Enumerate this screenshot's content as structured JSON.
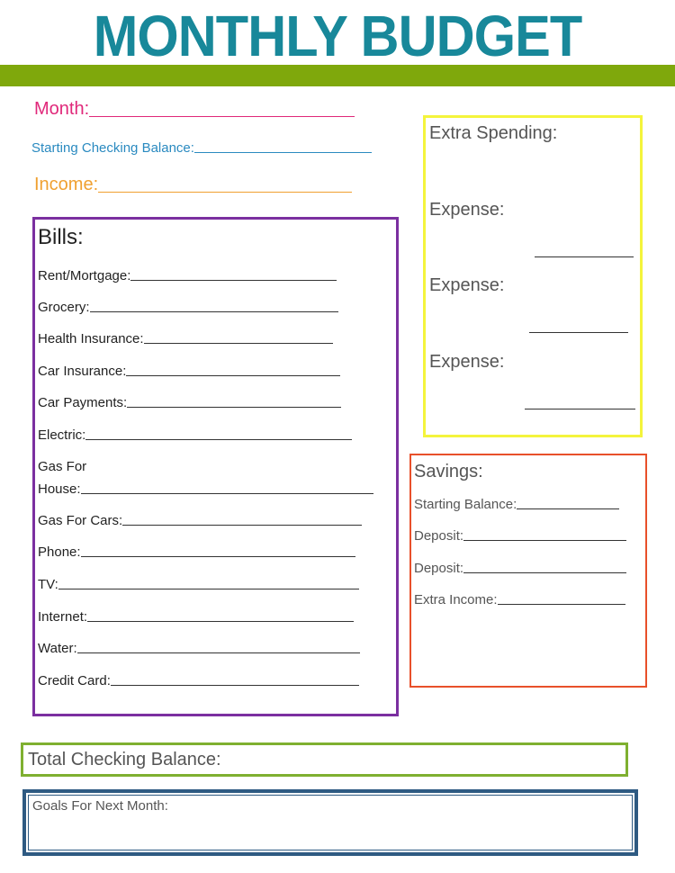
{
  "title": "MONTHLY BUDGET",
  "colors": {
    "title": "#18889a",
    "bar": "#7fa80c",
    "month": "#e0287a",
    "starting": "#2a8ac0",
    "income": "#f0a030",
    "bills": "#7b2fa0",
    "extra": "#f4f43c",
    "savings": "#e8502a",
    "total": "#7fb030",
    "goals": "#2e5a82"
  },
  "header_fields": {
    "month": "Month:",
    "starting_checking": "Starting Checking Balance:",
    "income": "Income:"
  },
  "bills": {
    "heading": "Bills:",
    "items": [
      "Rent/Mortgage:",
      "Grocery:",
      "Health Insurance:",
      "Car Insurance:",
      "Car Payments:",
      "Electric:",
      "Gas For",
      "House:",
      "Gas For Cars:",
      "Phone:",
      "TV:",
      "Internet:",
      "Water:",
      "Credit Card:"
    ]
  },
  "extra_spending": {
    "heading": "Extra Spending:",
    "items": [
      "Expense:",
      "Expense:",
      "Expense:"
    ]
  },
  "savings": {
    "heading": "Savings:",
    "items": [
      "Starting Balance:",
      "Deposit:",
      "Deposit:",
      "Extra Income:"
    ]
  },
  "total_checking": "Total Checking Balance:",
  "goals": "Goals For Next Month:"
}
